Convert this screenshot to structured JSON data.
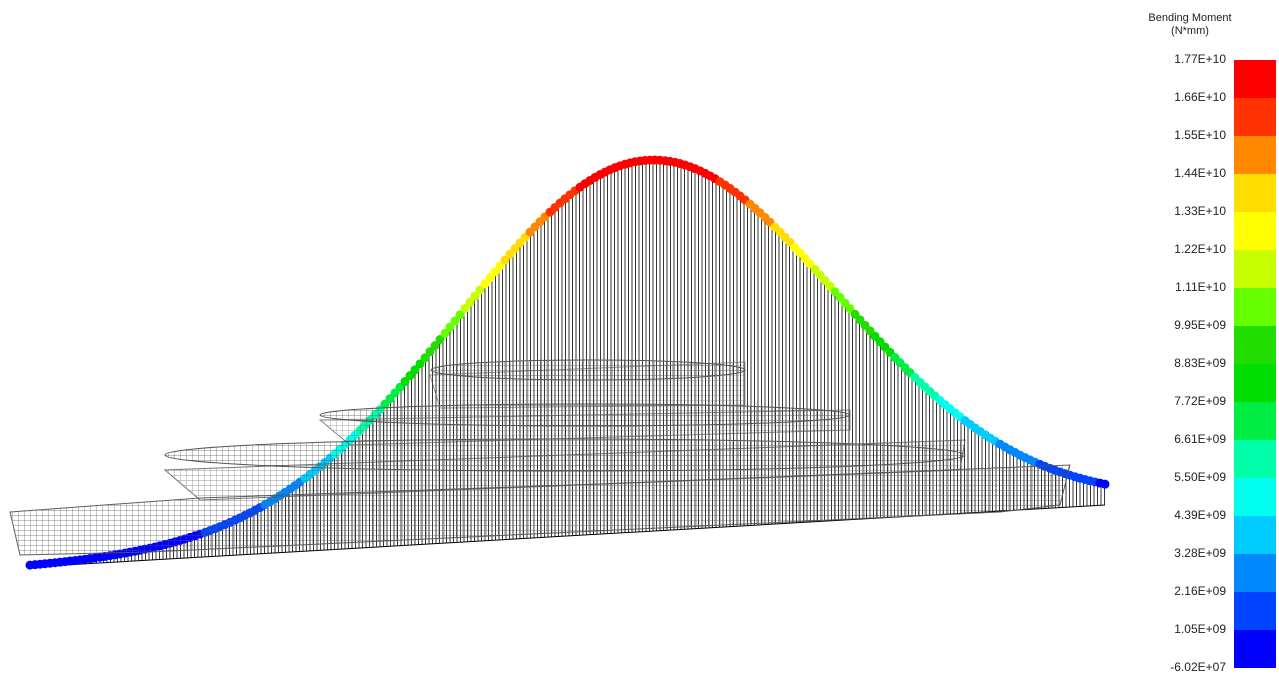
{
  "legend": {
    "title": "Bending Moment",
    "unit": "(N*mm)",
    "labels": [
      "1.77E+10",
      "1.66E+10",
      "1.55E+10",
      "1.44E+10",
      "1.33E+10",
      "1.22E+10",
      "1.11E+10",
      "9.95E+09",
      "8.83E+09",
      "7.72E+09",
      "6.61E+09",
      "5.50E+09",
      "4.39E+09",
      "3.28E+09",
      "2.16E+09",
      "1.05E+09",
      "-6.02E+07"
    ],
    "colors": [
      "#ff0000",
      "#ff3300",
      "#ff8800",
      "#ffdd00",
      "#ffff00",
      "#c8ff00",
      "#66ff00",
      "#22dd00",
      "#00dd00",
      "#00ee44",
      "#00ffaa",
      "#00ffee",
      "#00ccff",
      "#0088ff",
      "#0044ff",
      "#0000ff"
    ]
  }
}
